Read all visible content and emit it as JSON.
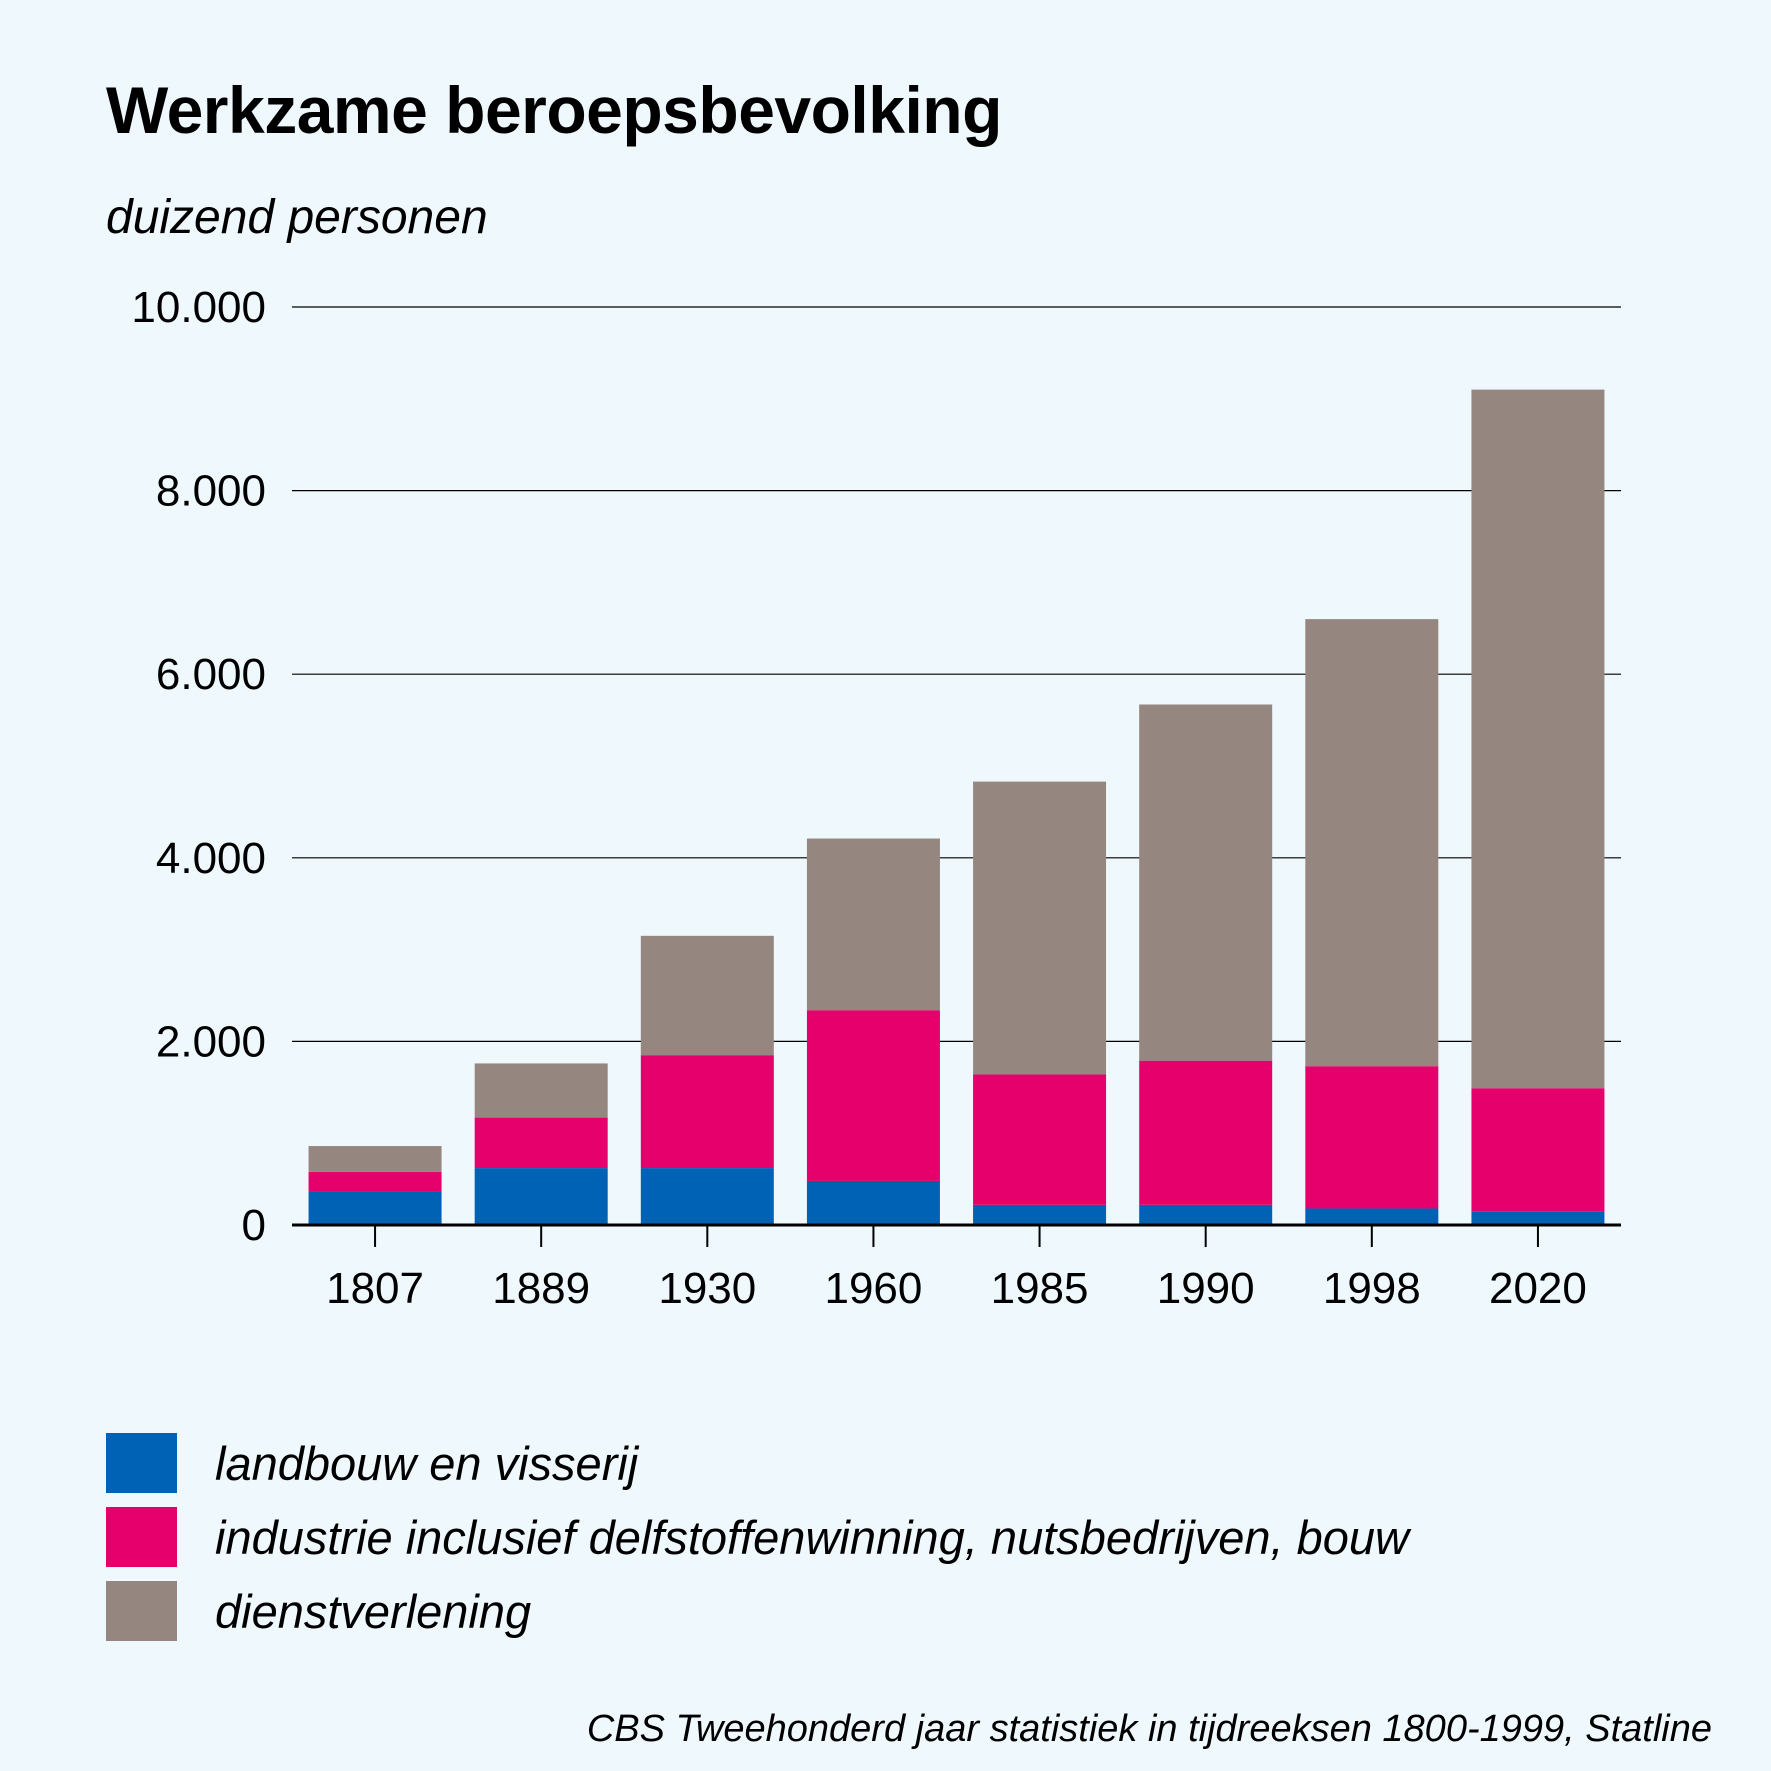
{
  "chart_data": {
    "type": "bar",
    "stacked": true,
    "title": "Werkzame beroepsbevolking",
    "subtitle": "duizend personen",
    "categories": [
      "1807",
      "1889",
      "1930",
      "1960",
      "1985",
      "1990",
      "1998",
      "2020"
    ],
    "series": [
      {
        "name": "landbouw en visserij",
        "color": "#0062b4",
        "values": [
          360,
          620,
          620,
          480,
          220,
          220,
          180,
          150
        ]
      },
      {
        "name": "industrie inclusief delfstoffenwinning, nutsbedrijven, bouw",
        "color": "#e5006b",
        "values": [
          220,
          550,
          1230,
          1860,
          1420,
          1570,
          1550,
          1340
        ]
      },
      {
        "name": "dienstverlening",
        "color": "#968680",
        "values": [
          280,
          590,
          1300,
          1870,
          3190,
          3880,
          4870,
          7610
        ]
      }
    ],
    "ylim": [
      0,
      10000
    ],
    "yticks": [
      0,
      2000,
      4000,
      6000,
      8000,
      10000
    ],
    "ytick_labels": [
      "0",
      "2.000",
      "4.000",
      "6.000",
      "8.000",
      "10.000"
    ],
    "grid": true,
    "legend_position": "bottom-left",
    "source": "CBS Tweehonderd jaar statistiek in tijdreeksen 1800-1999, Statline"
  }
}
